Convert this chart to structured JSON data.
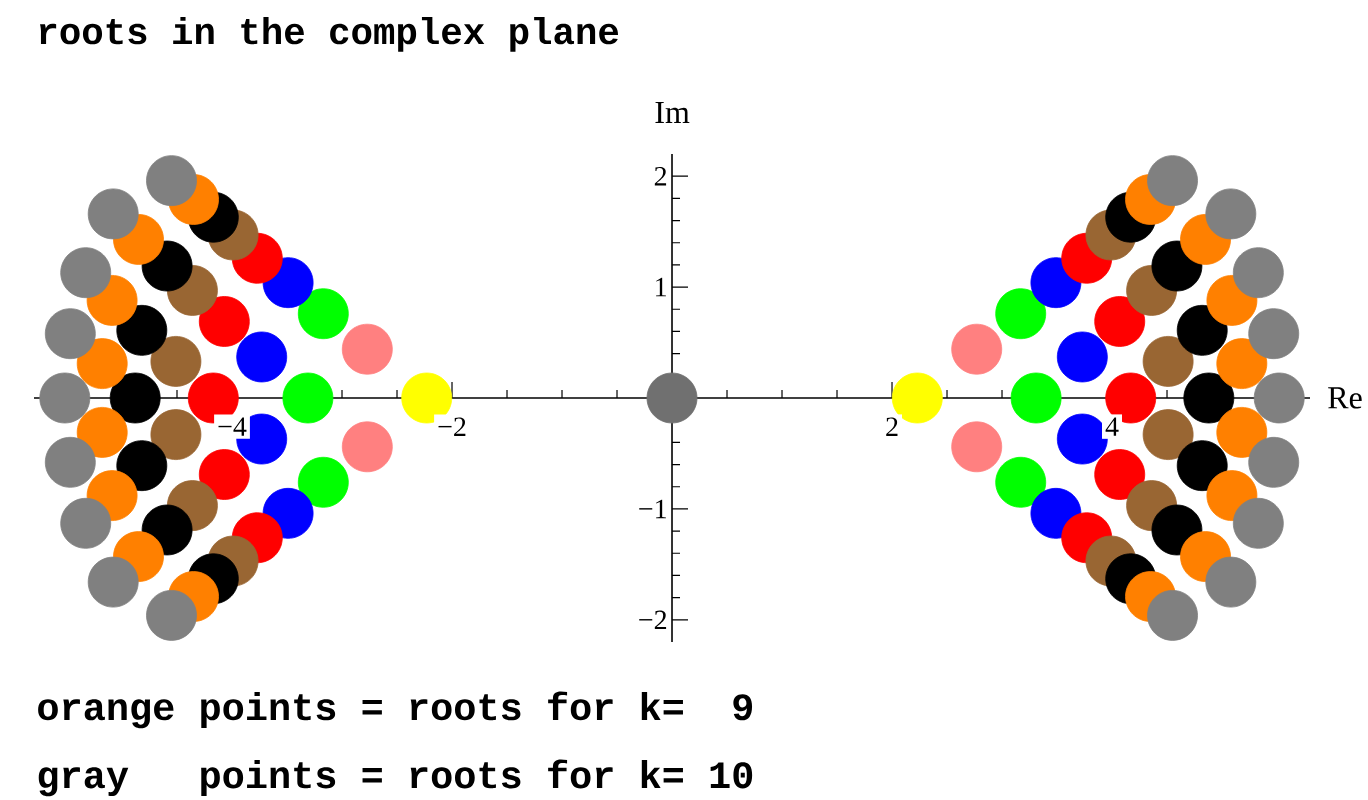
{
  "chart_data": {
    "type": "scatter",
    "title": "roots in the complex plane",
    "xlabel": "Re",
    "ylabel": "Im",
    "annotations": [
      "orange points = roots for k=  9",
      "gray   points = roots for k= 10"
    ],
    "xlim": [
      -5.8,
      5.8
    ],
    "ylim": [
      -2.2,
      2.2
    ],
    "xticks": [
      {
        "value": -5.5,
        "label": null
      },
      {
        "value": -5,
        "label": null
      },
      {
        "value": -4.5,
        "label": null
      },
      {
        "value": -4,
        "label": "−4"
      },
      {
        "value": -3.5,
        "label": null
      },
      {
        "value": -3,
        "label": null
      },
      {
        "value": -2.5,
        "label": null
      },
      {
        "value": -2,
        "label": "−2"
      },
      {
        "value": -1.5,
        "label": null
      },
      {
        "value": -1,
        "label": null
      },
      {
        "value": -0.5,
        "label": null
      },
      {
        "value": 0.5,
        "label": null
      },
      {
        "value": 1,
        "label": null
      },
      {
        "value": 1.5,
        "label": null
      },
      2,
      {
        "value": 2.5,
        "label": null
      },
      {
        "value": 3,
        "label": null
      },
      {
        "value": 3.5,
        "label": null
      },
      4,
      {
        "value": 4.5,
        "label": null
      },
      {
        "value": 5,
        "label": null
      },
      {
        "value": 5.5,
        "label": null
      }
    ],
    "yticks": [
      {
        "value": -2,
        "label": "−2"
      },
      {
        "value": -1.8,
        "label": null
      },
      {
        "value": -1.6,
        "label": null
      },
      {
        "value": -1.4,
        "label": null
      },
      {
        "value": -1.2,
        "label": null
      },
      {
        "value": -1,
        "label": "−1"
      },
      {
        "value": -0.8,
        "label": null
      },
      {
        "value": -0.6,
        "label": null
      },
      {
        "value": -0.4,
        "label": null
      },
      {
        "value": -0.2,
        "label": null
      },
      {
        "value": 0.2,
        "label": null
      },
      {
        "value": 0.4,
        "label": null
      },
      {
        "value": 0.6,
        "label": null
      },
      {
        "value": 0.8,
        "label": null
      },
      1,
      {
        "value": 1.2,
        "label": null
      },
      {
        "value": 1.4,
        "label": null
      },
      {
        "value": 1.6,
        "label": null
      },
      {
        "value": 1.8,
        "label": null
      },
      2
    ],
    "marker": "circle",
    "series": [
      {
        "color": "#707070",
        "x": [
          0
        ],
        "values": [
          0
        ]
      },
      {
        "color": "#ffff00",
        "x": [
          2.23,
          -2.23
        ],
        "values": [
          0,
          0
        ]
      },
      {
        "color": "#ff8080",
        "x": [
          2.77,
          2.77,
          -2.77,
          -2.77
        ],
        "values": [
          0.44,
          -0.44,
          0.44,
          -0.44
        ]
      },
      {
        "color": "#00ff00",
        "x": [
          3.17,
          3.31,
          3.17,
          -3.17,
          -3.31,
          -3.17
        ],
        "values": [
          0.76,
          0,
          -0.76,
          0.76,
          0,
          -0.76
        ]
      },
      {
        "color": "#0000ff",
        "x": [
          3.49,
          3.73,
          3.73,
          3.49,
          -3.49,
          -3.73,
          -3.73,
          -3.49
        ],
        "values": [
          1.04,
          0.37,
          -0.37,
          -1.04,
          1.04,
          0.37,
          -0.37,
          -1.04
        ]
      },
      {
        "color": "#ff0000",
        "x": [
          3.77,
          4.07,
          4.17,
          4.07,
          3.77,
          -3.77,
          -4.07,
          -4.17,
          -4.07,
          -3.77
        ],
        "values": [
          1.26,
          0.69,
          0,
          -0.69,
          -1.26,
          1.26,
          0.69,
          0,
          -0.69,
          -1.26
        ]
      },
      {
        "color": "#996633",
        "x": [
          3.99,
          4.36,
          4.51,
          4.51,
          4.36,
          3.99,
          -3.99,
          -4.36,
          -4.51,
          -4.51,
          -4.36,
          -3.99
        ],
        "values": [
          1.47,
          0.97,
          0.33,
          -0.33,
          -0.97,
          -1.47,
          1.47,
          0.97,
          0.33,
          -0.33,
          -0.97,
          -1.47
        ]
      },
      {
        "color": "#000000",
        "x": [
          4.17,
          4.59,
          4.82,
          4.88,
          4.82,
          4.59,
          4.17,
          -4.17,
          -4.59,
          -4.82,
          -4.88,
          -4.82,
          -4.59,
          -4.17
        ],
        "values": [
          1.63,
          1.19,
          0.61,
          0,
          -0.61,
          -1.19,
          -1.63,
          1.63,
          1.19,
          0.61,
          0,
          -0.61,
          -1.19,
          -1.63
        ]
      },
      {
        "color": "#ff8000",
        "x": [
          4.35,
          4.85,
          5.09,
          5.18,
          5.18,
          5.09,
          4.85,
          4.35,
          -4.35,
          -4.85,
          -5.09,
          -5.18,
          -5.18,
          -5.09,
          -4.85,
          -4.35
        ],
        "values": [
          1.79,
          1.43,
          0.88,
          0.31,
          -0.31,
          -0.88,
          -1.43,
          -1.79,
          1.79,
          1.43,
          0.88,
          0.31,
          -0.31,
          -0.88,
          -1.43,
          -1.79
        ]
      },
      {
        "color": "#808080",
        "x": [
          4.55,
          5.08,
          5.33,
          5.47,
          5.52,
          5.47,
          5.33,
          5.08,
          4.55,
          -4.55,
          -5.08,
          -5.33,
          -5.47,
          -5.52,
          -5.47,
          -5.33,
          -5.08,
          -4.55
        ],
        "values": [
          1.96,
          1.66,
          1.13,
          0.58,
          0,
          -0.58,
          -1.13,
          -1.66,
          -1.96,
          1.96,
          1.66,
          1.13,
          0.58,
          0,
          -0.58,
          -1.13,
          -1.66,
          -1.96
        ]
      }
    ]
  }
}
